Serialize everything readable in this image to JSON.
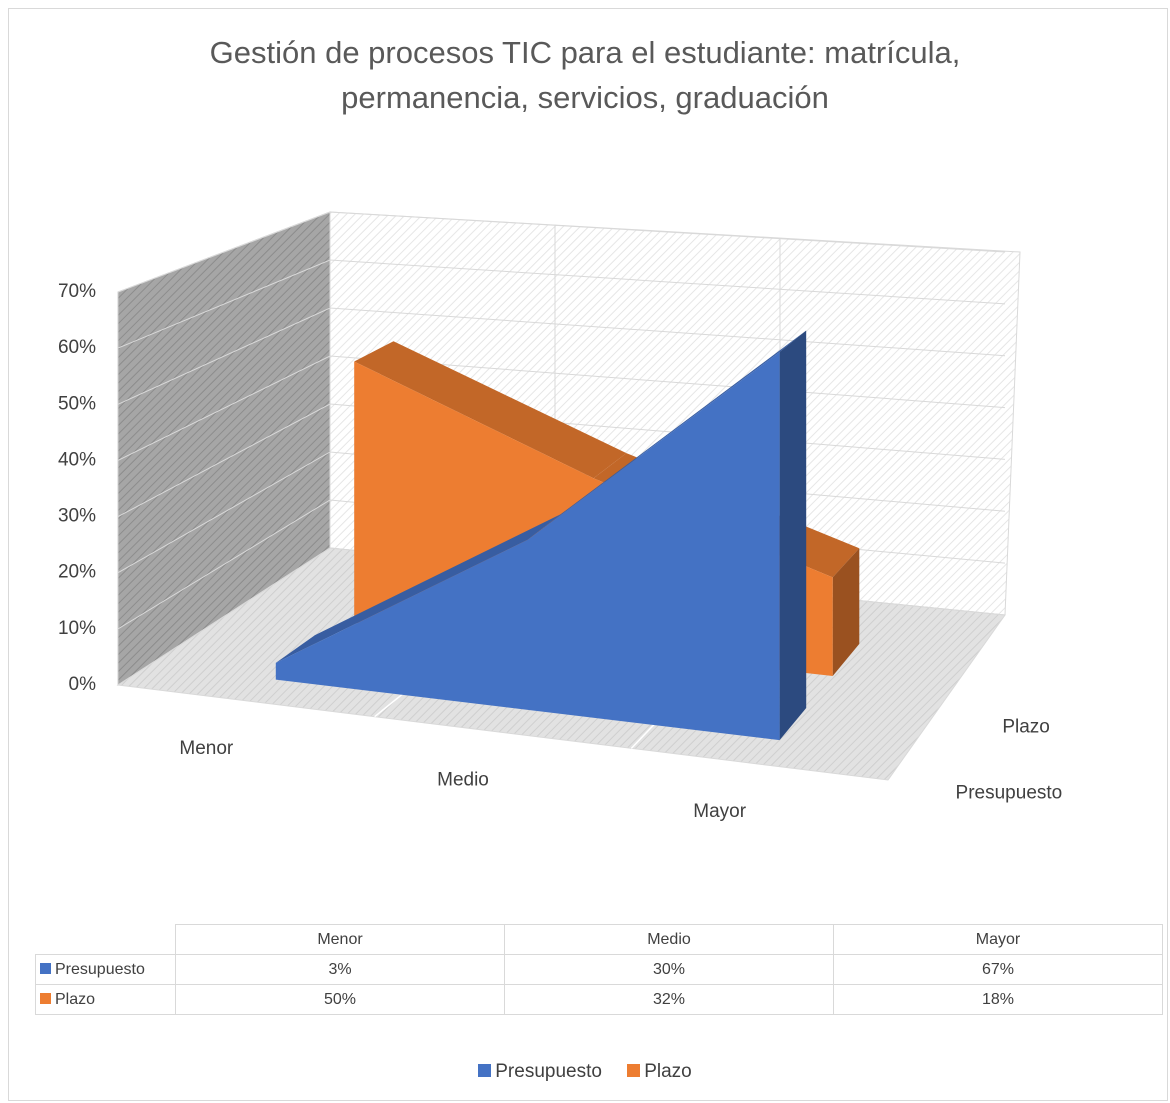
{
  "chart_data": {
    "type": "area3d",
    "title": "Gestión de procesos TIC para el estudiante: matrícula, permanencia, servicios, graduación",
    "categories": [
      "Menor",
      "Medio",
      "Mayor"
    ],
    "series": [
      {
        "name": "Presupuesto",
        "color": "#4472c4",
        "values": [
          3,
          30,
          67
        ],
        "value_labels": [
          "3%",
          "30%",
          "67%"
        ]
      },
      {
        "name": "Plazo",
        "color": "#ed7d31",
        "values": [
          50,
          32,
          18
        ],
        "value_labels": [
          "50%",
          "32%",
          "18%"
        ]
      }
    ],
    "ylim": [
      0,
      70
    ],
    "yticks": [
      {
        "value": 0,
        "label": "0%"
      },
      {
        "value": 10,
        "label": "10%"
      },
      {
        "value": 20,
        "label": "20%"
      },
      {
        "value": 30,
        "label": "30%"
      },
      {
        "value": 40,
        "label": "40%"
      },
      {
        "value": 50,
        "label": "50%"
      },
      {
        "value": 60,
        "label": "60%"
      },
      {
        "value": 70,
        "label": "70%"
      }
    ],
    "grid": true,
    "legend": "bottom",
    "data_table": true
  }
}
